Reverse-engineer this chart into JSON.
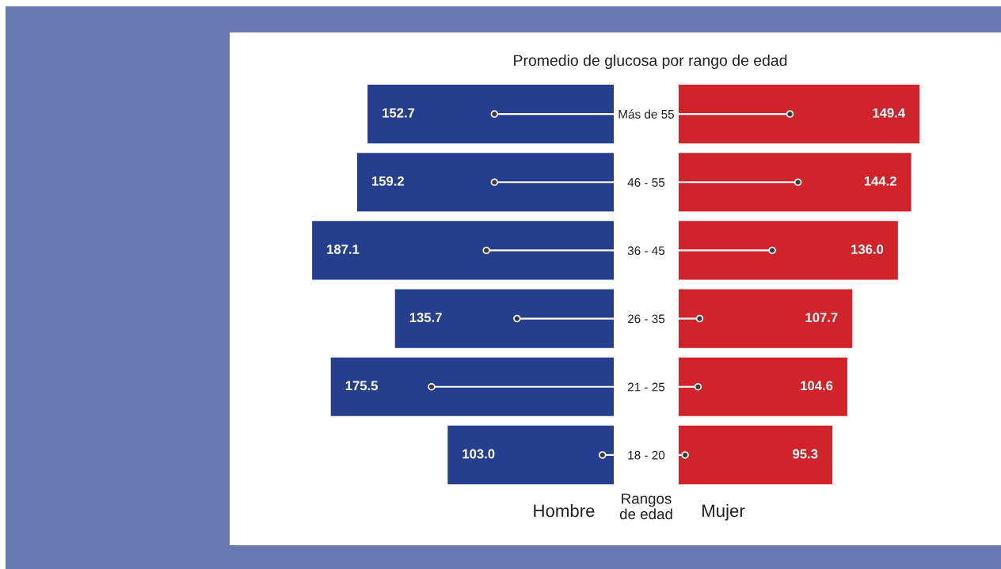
{
  "chart_data": [
    {
      "type": "bar",
      "orientation": "horizontal",
      "title": "Promedio de glucosa por rango de edad",
      "xlabel": "Hombre",
      "ylabel": "Rangos de edad",
      "categories": [
        "Más de 55",
        "46 - 55",
        "36 - 45",
        "26 - 35",
        "21 - 25",
        "18 - 20"
      ],
      "series": [
        {
          "color": "#253f8e",
          "values": [
            152.7,
            159.2,
            187.1,
            135.7,
            175.5,
            103.0
          ],
          "value_labels": [
            "152.7",
            "159.2",
            "187.1",
            "135.7",
            "175.5",
            "103.0"
          ]
        },
        {
          "type": "lollipop",
          "color": "#ffffff",
          "marker": "circle",
          "values": [
            74,
            74,
            79,
            60,
            113,
            7
          ]
        }
      ],
      "tick_labels": "y"
    },
    {
      "type": "bar",
      "orientation": "horizontal",
      "xlabel": "Mujer",
      "categories": [
        "Más de 55",
        "46 - 55",
        "36 - 45",
        "26 - 35",
        "21 - 25",
        "18 - 20"
      ],
      "series": [
        {
          "color": "#d1232a",
          "values": [
            149.4,
            144.2,
            136.0,
            107.7,
            104.6,
            95.3
          ],
          "value_labels": [
            "149.4",
            "144.2",
            "136.0",
            "107.7",
            "104.6",
            "95.3"
          ]
        },
        {
          "type": "lollipop",
          "color": "#ffffff",
          "marker": "circle",
          "values": [
            69,
            74,
            58,
            13,
            12,
            4
          ]
        }
      ],
      "tick_labels": false
    }
  ]
}
